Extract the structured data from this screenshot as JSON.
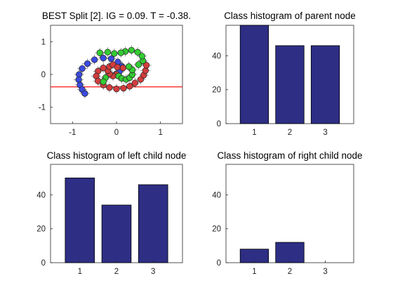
{
  "chart_data": [
    {
      "type": "scatter",
      "title": "BEST Split [2]. IG = 0.09. T = -0.38.",
      "xlim": [
        -1.5,
        1.5
      ],
      "ylim": [
        -1.5,
        1.5
      ],
      "xticks": [
        -1,
        0,
        1
      ],
      "yticks": [
        -1,
        0,
        1
      ],
      "xtick_labels": [
        "-1",
        "0",
        "1"
      ],
      "ytick_labels": [
        "-1",
        "0",
        "1"
      ],
      "threshold_line": {
        "axis": "y",
        "value": -0.38,
        "color": "#ff0000"
      },
      "series": [
        {
          "color": "#3b4be0",
          "points": [
            [
              0.0,
              0.02
            ],
            [
              0.07,
              0.1
            ],
            [
              0.12,
              0.25
            ],
            [
              0.03,
              0.38
            ],
            [
              -0.12,
              0.48
            ],
            [
              -0.3,
              0.5
            ],
            [
              -0.5,
              0.45
            ],
            [
              -0.66,
              0.33
            ],
            [
              -0.78,
              0.18
            ],
            [
              -0.85,
              0.0
            ],
            [
              -0.86,
              -0.16
            ],
            [
              -0.83,
              -0.32
            ],
            [
              -0.78,
              -0.46
            ],
            [
              -0.72,
              -0.58
            ]
          ]
        },
        {
          "color": "#d43d3d",
          "points": [
            [
              0.0,
              0.0
            ],
            [
              -0.08,
              -0.05
            ],
            [
              -0.16,
              0.02
            ],
            [
              -0.2,
              0.12
            ],
            [
              -0.16,
              0.24
            ],
            [
              -0.08,
              0.3
            ],
            [
              0.02,
              0.22
            ],
            [
              0.15,
              0.2
            ],
            [
              -0.3,
              0.2
            ],
            [
              -0.42,
              0.1
            ],
            [
              -0.46,
              -0.05
            ],
            [
              -0.42,
              -0.2
            ],
            [
              -0.3,
              -0.32
            ],
            [
              -0.16,
              -0.4
            ],
            [
              0.0,
              -0.44
            ],
            [
              0.16,
              -0.42
            ],
            [
              0.3,
              -0.36
            ],
            [
              0.42,
              -0.26
            ],
            [
              0.55,
              -0.15
            ],
            [
              0.62,
              -0.02
            ],
            [
              0.66,
              0.12
            ],
            [
              0.68,
              0.28
            ]
          ]
        },
        {
          "color": "#33cc33",
          "points": [
            [
              0.05,
              -0.05
            ],
            [
              0.12,
              -0.12
            ],
            [
              0.22,
              -0.15
            ],
            [
              0.3,
              -0.1
            ],
            [
              0.36,
              0.0
            ],
            [
              0.36,
              0.14
            ],
            [
              0.28,
              0.24
            ],
            [
              -0.25,
              -0.1
            ],
            [
              -0.3,
              -0.22
            ],
            [
              0.5,
              0.3
            ],
            [
              0.6,
              0.42
            ],
            [
              0.58,
              0.56
            ],
            [
              0.48,
              0.68
            ],
            [
              0.34,
              0.74
            ],
            [
              0.2,
              0.7
            ],
            [
              0.1,
              0.66
            ],
            [
              -0.05,
              0.64
            ],
            [
              -0.2,
              0.68
            ],
            [
              -0.38,
              0.66
            ]
          ]
        }
      ]
    },
    {
      "type": "bar",
      "title": "Class histogram of parent node",
      "categories": [
        "1",
        "2",
        "3"
      ],
      "values": [
        58,
        46,
        46
      ],
      "ylim": [
        0,
        58
      ],
      "yticks": [
        0,
        20,
        40
      ],
      "color": "#2d2e84"
    },
    {
      "type": "bar",
      "title": "Class histogram of left child node",
      "categories": [
        "1",
        "2",
        "3"
      ],
      "values": [
        50,
        34,
        46
      ],
      "ylim": [
        0,
        58
      ],
      "yticks": [
        0,
        20,
        40
      ],
      "color": "#2d2e84"
    },
    {
      "type": "bar",
      "title": "Class histogram of right child node",
      "categories": [
        "1",
        "2",
        "3"
      ],
      "values": [
        8,
        12,
        0
      ],
      "ylim": [
        0,
        58
      ],
      "yticks": [
        0,
        20,
        40
      ],
      "color": "#2d2e84"
    }
  ]
}
